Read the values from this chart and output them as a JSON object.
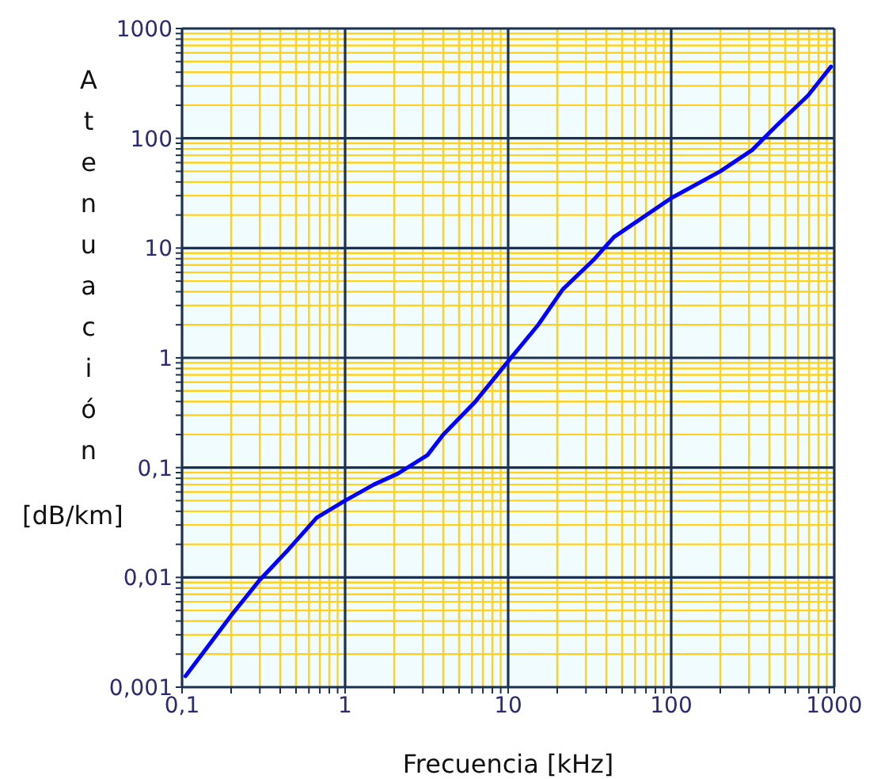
{
  "chart_data": {
    "type": "line",
    "xlabel": "Frecuencia [kHz]",
    "ylabel": "Atenuación [dB/km]",
    "x": [
      0.105,
      0.2,
      0.3,
      0.45,
      0.67,
      1,
      1.5,
      2.1,
      3.2,
      4,
      6.3,
      10,
      15.3,
      21.6,
      33.4,
      44.6,
      100,
      200,
      313,
      437,
      690,
      955
    ],
    "series": [
      {
        "color": "#0000ff",
        "values": [
          0.00126,
          0.0045,
          0.0095,
          0.018,
          0.035,
          0.05,
          0.07,
          0.088,
          0.13,
          0.2,
          0.4,
          0.93,
          2,
          4.2,
          7.8,
          12.6,
          28.5,
          50,
          78,
          128,
          245,
          450
        ]
      }
    ],
    "log": "xy",
    "xlim": [
      0.1,
      1000
    ],
    "ylim": [
      0.001,
      1000
    ],
    "xticks": [
      {
        "value": 0.1,
        "label": "0,1"
      },
      {
        "value": 0.2,
        "label": null
      },
      {
        "value": 0.3,
        "label": null
      },
      {
        "value": 0.4,
        "label": null
      },
      {
        "value": 0.5,
        "label": null
      },
      {
        "value": 0.6,
        "label": null
      },
      {
        "value": 0.7,
        "label": null
      },
      {
        "value": 0.8,
        "label": null
      },
      {
        "value": 0.9,
        "label": null
      },
      1,
      {
        "value": 2,
        "label": null
      },
      {
        "value": 3,
        "label": null
      },
      {
        "value": 4,
        "label": null
      },
      {
        "value": 5,
        "label": null
      },
      {
        "value": 6,
        "label": null
      },
      {
        "value": 7,
        "label": null
      },
      {
        "value": 8,
        "label": null
      },
      {
        "value": 9,
        "label": null
      },
      10,
      {
        "value": 20,
        "label": null
      },
      {
        "value": 30,
        "label": null
      },
      {
        "value": 40,
        "label": null
      },
      {
        "value": 50,
        "label": null
      },
      {
        "value": 60,
        "label": null
      },
      {
        "value": 70,
        "label": null
      },
      {
        "value": 80,
        "label": null
      },
      {
        "value": 90,
        "label": null
      },
      100,
      {
        "value": 200,
        "label": null
      },
      {
        "value": 300,
        "label": null
      },
      {
        "value": 400,
        "label": null
      },
      {
        "value": 500,
        "label": null
      },
      {
        "value": 600,
        "label": null
      },
      {
        "value": 700,
        "label": null
      },
      {
        "value": 800,
        "label": null
      },
      {
        "value": 900,
        "label": null
      },
      1000
    ],
    "yticks": [
      {
        "value": 0.001,
        "label": "0,001"
      },
      {
        "value": 0.002,
        "label": null
      },
      {
        "value": 0.003,
        "label": null
      },
      {
        "value": 0.004,
        "label": null
      },
      {
        "value": 0.005,
        "label": null
      },
      {
        "value": 0.006,
        "label": null
      },
      {
        "value": 0.007,
        "label": null
      },
      {
        "value": 0.008,
        "label": null
      },
      {
        "value": 0.009,
        "label": null
      },
      {
        "value": 0.01,
        "label": "0,01"
      },
      {
        "value": 0.02,
        "label": null
      },
      {
        "value": 0.03,
        "label": null
      },
      {
        "value": 0.04,
        "label": null
      },
      {
        "value": 0.05,
        "label": null
      },
      {
        "value": 0.06,
        "label": null
      },
      {
        "value": 0.07,
        "label": null
      },
      {
        "value": 0.08,
        "label": null
      },
      {
        "value": 0.09,
        "label": null
      },
      {
        "value": 0.1,
        "label": "0,1"
      },
      {
        "value": 0.2,
        "label": null
      },
      {
        "value": 0.3,
        "label": null
      },
      {
        "value": 0.4,
        "label": null
      },
      {
        "value": 0.5,
        "label": null
      },
      {
        "value": 0.6,
        "label": null
      },
      {
        "value": 0.7,
        "label": null
      },
      {
        "value": 0.8,
        "label": null
      },
      {
        "value": 0.9,
        "label": null
      },
      1,
      {
        "value": 2,
        "label": null
      },
      {
        "value": 3,
        "label": null
      },
      {
        "value": 4,
        "label": null
      },
      {
        "value": 5,
        "label": null
      },
      {
        "value": 6,
        "label": null
      },
      {
        "value": 7,
        "label": null
      },
      {
        "value": 8,
        "label": null
      },
      {
        "value": 9,
        "label": null
      },
      10,
      {
        "value": 20,
        "label": null
      },
      {
        "value": 30,
        "label": null
      },
      {
        "value": 40,
        "label": null
      },
      {
        "value": 50,
        "label": null
      },
      {
        "value": 60,
        "label": null
      },
      {
        "value": 70,
        "label": null
      },
      {
        "value": 80,
        "label": null
      },
      {
        "value": 90,
        "label": null
      },
      100,
      {
        "value": 200,
        "label": null
      },
      {
        "value": 300,
        "label": null
      },
      {
        "value": 400,
        "label": null
      },
      {
        "value": 500,
        "label": null
      },
      {
        "value": 600,
        "label": null
      },
      {
        "value": 700,
        "label": null
      },
      {
        "value": 800,
        "label": null
      },
      {
        "value": 900,
        "label": null
      },
      1000
    ],
    "grid": true,
    "marker": "none",
    "line_style": "solid"
  }
}
